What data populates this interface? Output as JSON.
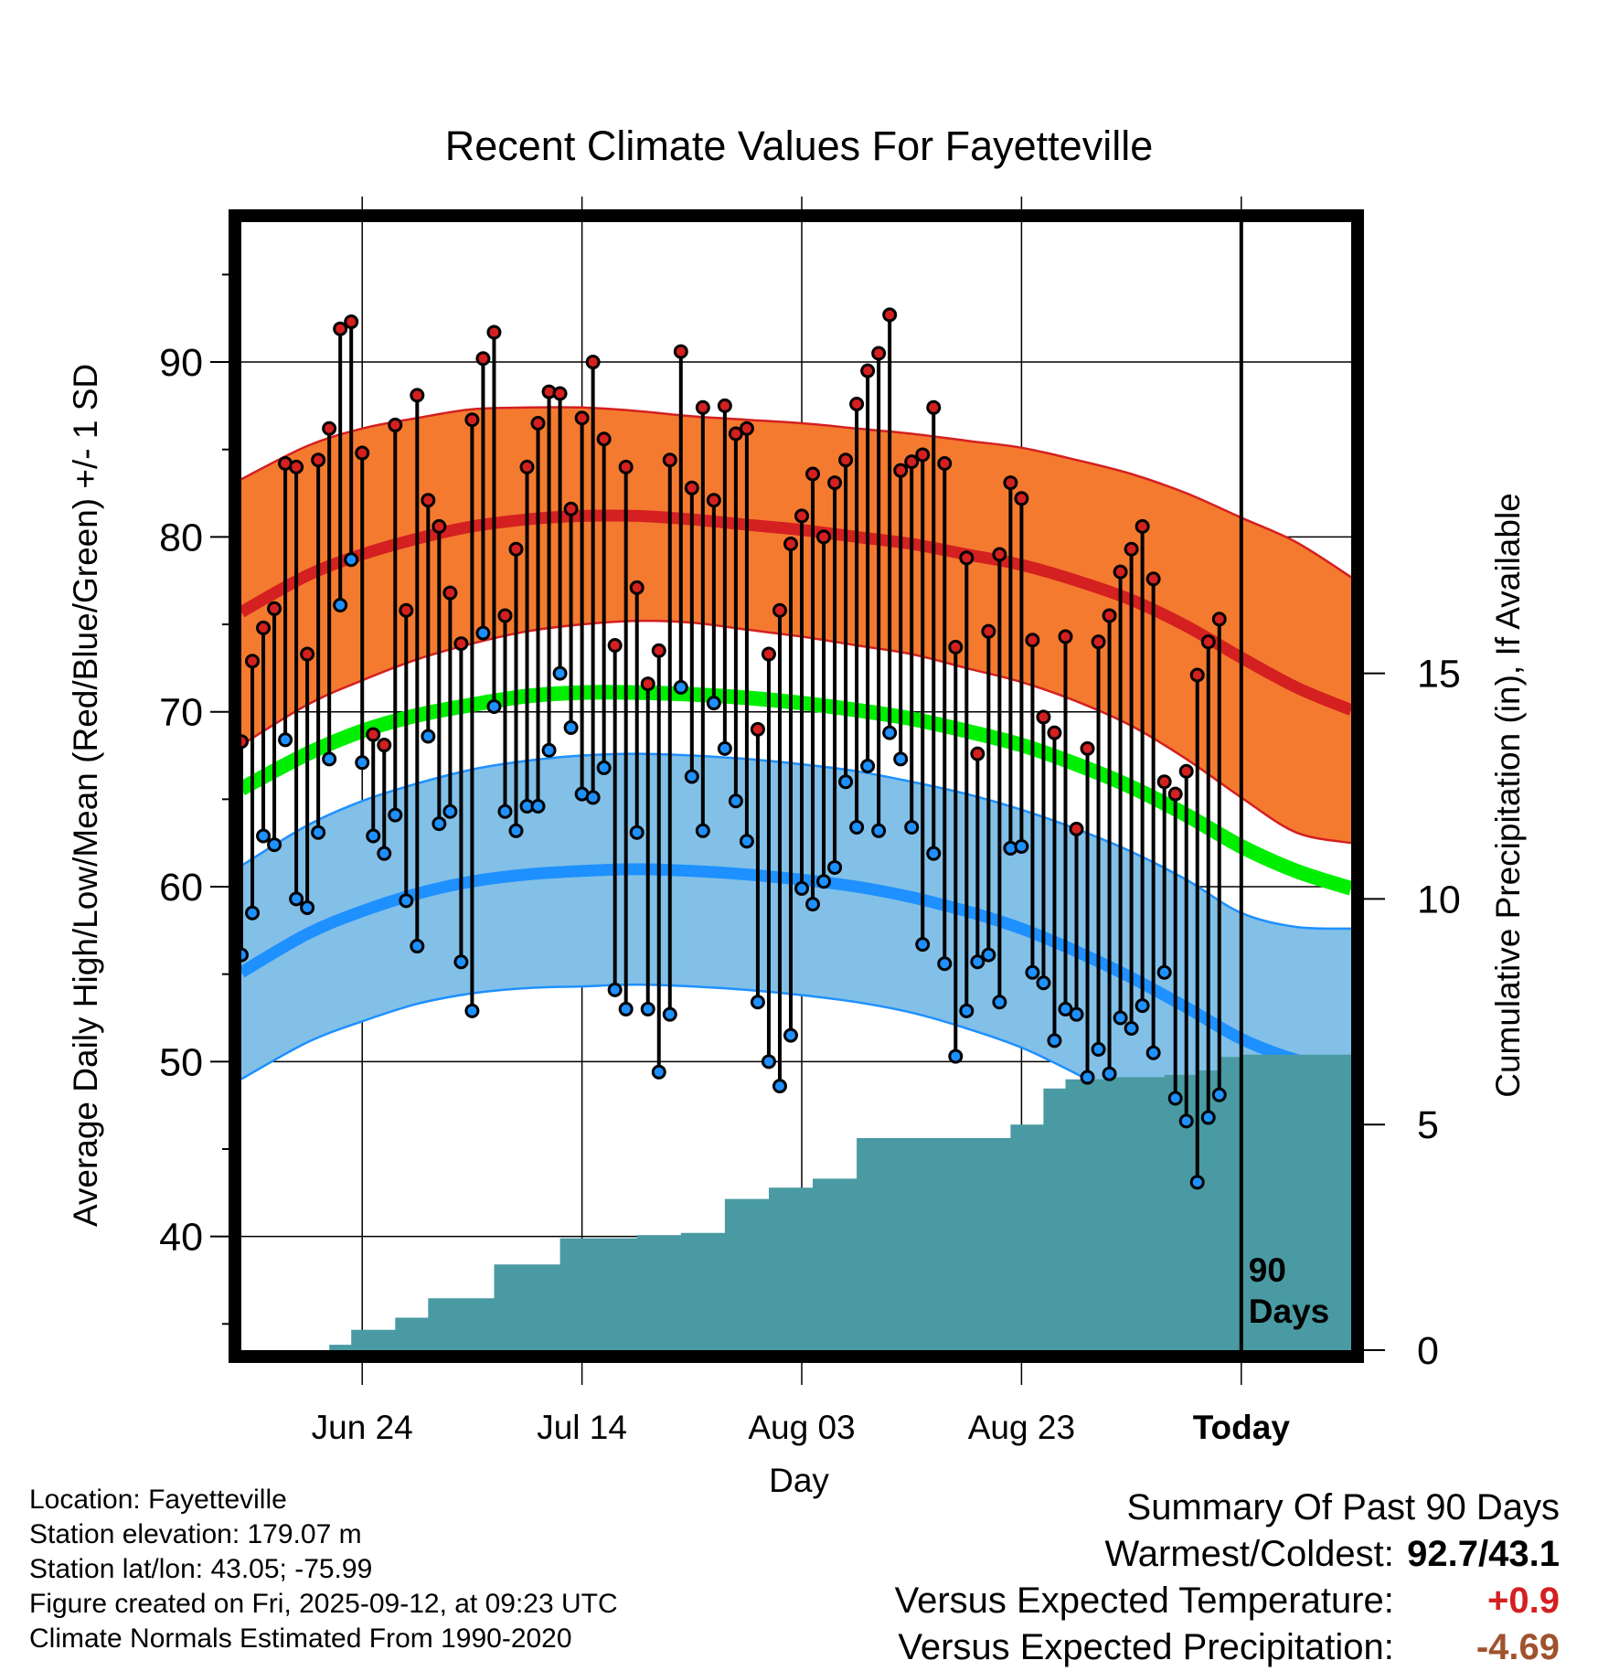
{
  "chart_data": {
    "type": "line",
    "title": "Recent Climate Values For Fayetteville",
    "xlabel": "Day",
    "ylabel": "Average Daily High/Low/Mean (Red/Blue/Green) +/- 1 SD",
    "y2label": "Cumulative Precipitation (in), If Available",
    "ylim": [
      33.5,
      98
    ],
    "y2lim": [
      0,
      25
    ],
    "xlim": [
      -11,
      90
    ],
    "x_tick_labels": [
      "Jun 24",
      "Jul 14",
      "Aug 03",
      "Aug 23",
      "Today"
    ],
    "x_tick_days": [
      0,
      20,
      40,
      60,
      80
    ],
    "y_ticks": [
      40,
      50,
      60,
      70,
      80,
      90
    ],
    "y2_ticks": [
      0,
      5,
      10,
      15
    ],
    "today_day": 80,
    "days_label": "90 Days",
    "grid": true,
    "normals": {
      "day": [
        -11,
        -5,
        0,
        5,
        10,
        15,
        20,
        25,
        30,
        35,
        40,
        45,
        50,
        55,
        60,
        65,
        70,
        75,
        80,
        85,
        90
      ],
      "high_mean": [
        75.7,
        77.8,
        79.0,
        79.9,
        80.6,
        81.0,
        81.2,
        81.2,
        81.0,
        80.7,
        80.4,
        80.0,
        79.6,
        79.0,
        78.4,
        77.5,
        76.4,
        74.9,
        73.1,
        71.4,
        70.1
      ],
      "high_sd": [
        7.6,
        7.4,
        7.2,
        6.9,
        6.7,
        6.4,
        6.2,
        6.0,
        5.9,
        6.0,
        6.1,
        6.2,
        6.3,
        6.5,
        6.7,
        6.9,
        7.2,
        7.6,
        8.0,
        8.3,
        7.6
      ],
      "low_mean": [
        55.1,
        57.3,
        58.6,
        59.6,
        60.3,
        60.7,
        60.9,
        61.0,
        60.9,
        60.7,
        60.4,
        60.0,
        59.4,
        58.6,
        57.6,
        56.3,
        54.8,
        53.1,
        51.3,
        50.1,
        49.4
      ],
      "low_sd": [
        6.1,
        6.2,
        6.3,
        6.3,
        6.4,
        6.5,
        6.6,
        6.6,
        6.6,
        6.6,
        6.6,
        6.6,
        6.6,
        6.7,
        6.8,
        7.0,
        7.2,
        7.3,
        7.2,
        7.6,
        8.2
      ],
      "avg_mean": [
        65.6,
        67.6,
        68.9,
        69.8,
        70.4,
        70.9,
        71.1,
        71.1,
        71.0,
        70.8,
        70.5,
        70.1,
        69.6,
        68.9,
        68.1,
        67.0,
        65.7,
        64.1,
        62.3,
        60.9,
        59.9
      ]
    },
    "series": [
      {
        "name": "Daily High",
        "start_day": -11,
        "values": [
          68.3,
          72.9,
          74.8,
          75.9,
          84.2,
          84.0,
          73.3,
          84.4,
          86.2,
          91.9,
          92.3,
          84.8,
          68.7,
          68.1,
          86.4,
          75.8,
          88.1,
          82.1,
          80.6,
          76.8,
          73.9,
          86.7,
          90.2,
          91.7,
          75.5,
          79.3,
          84.0,
          86.5,
          88.3,
          88.2,
          81.6,
          86.8,
          90.0,
          85.6,
          73.8,
          84.0,
          77.1,
          71.6,
          73.5,
          84.4,
          90.6,
          82.8,
          87.4,
          82.1,
          87.5,
          85.9,
          86.2,
          69.0,
          73.3,
          75.8,
          79.6,
          81.2,
          83.6,
          80.0,
          83.1,
          84.4,
          87.6,
          89.5,
          90.5,
          92.7,
          83.8,
          84.3,
          84.7,
          87.4,
          84.2,
          73.7,
          78.8,
          67.6,
          74.6,
          79.0,
          83.1,
          82.2,
          74.1,
          69.7,
          68.8,
          74.3,
          63.3,
          67.9,
          74.0,
          75.5,
          78.0,
          79.3,
          80.6,
          77.6,
          66.0,
          65.3,
          66.6,
          72.1,
          74.0,
          75.3
        ]
      },
      {
        "name": "Daily Low",
        "start_day": -11,
        "values": [
          56.1,
          58.5,
          62.9,
          62.4,
          68.4,
          59.3,
          58.8,
          63.1,
          67.3,
          76.1,
          78.7,
          67.1,
          62.9,
          61.9,
          64.1,
          59.2,
          56.6,
          68.6,
          63.6,
          64.3,
          55.7,
          52.9,
          74.5,
          70.3,
          64.3,
          63.2,
          64.6,
          64.6,
          67.8,
          72.2,
          69.1,
          65.3,
          65.1,
          66.8,
          54.1,
          53.0,
          63.1,
          53.0,
          49.4,
          52.7,
          71.4,
          66.3,
          63.2,
          70.5,
          67.9,
          64.9,
          62.6,
          53.4,
          50.0,
          48.6,
          51.5,
          59.9,
          59.0,
          60.3,
          61.1,
          66.0,
          63.4,
          66.9,
          63.2,
          68.8,
          67.3,
          63.4,
          56.7,
          61.9,
          55.6,
          50.3,
          52.9,
          55.7,
          56.1,
          53.4,
          62.2,
          62.3,
          55.1,
          54.5,
          51.2,
          53.0,
          52.7,
          49.1,
          50.7,
          49.3,
          52.5,
          51.9,
          53.2,
          50.5,
          55.1,
          47.9,
          46.6,
          43.1,
          46.8,
          48.1
        ]
      },
      {
        "name": "Cumulative Precipitation",
        "steps": [
          [
            -11,
            0.0
          ],
          [
            -3,
            0.12
          ],
          [
            -1,
            0.45
          ],
          [
            3,
            0.72
          ],
          [
            6,
            1.15
          ],
          [
            12,
            1.9
          ],
          [
            18,
            2.48
          ],
          [
            25,
            2.55
          ],
          [
            29,
            2.6
          ],
          [
            33,
            3.35
          ],
          [
            37,
            3.6
          ],
          [
            41,
            3.8
          ],
          [
            45,
            4.7
          ],
          [
            50,
            4.7
          ],
          [
            55,
            4.7
          ],
          [
            59,
            5.0
          ],
          [
            62,
            5.8
          ],
          [
            64,
            6.0
          ],
          [
            68,
            6.05
          ],
          [
            73,
            6.1
          ],
          [
            76,
            6.2
          ],
          [
            78,
            6.5
          ],
          [
            80,
            6.55
          ],
          [
            90,
            6.55
          ]
        ]
      }
    ]
  },
  "info": {
    "location": "Location: Fayetteville",
    "elevation": "Station elevation: 179.07 m",
    "latlon": "Station lat/lon: 43.05; -75.99",
    "created": "Figure created on Fri, 2025-09-12, at 09:23 UTC",
    "normals": "Climate Normals Estimated From 1990-2020"
  },
  "summary": {
    "title": "Summary Of Past 90 Days",
    "warm_cold_label": "Warmest/Coldest:",
    "warm_cold_value": "92.7/43.1",
    "temp_label": "Versus Expected Temperature:",
    "temp_value": "+0.9",
    "precip_label": "Versus Expected Precipitation:",
    "precip_value": "-4.69"
  },
  "colors": {
    "high_band": "#f47a30",
    "high_line": "#d42020",
    "low_band": "#82c0e8",
    "low_line": "#1e90ff",
    "mean_line": "#00ee00",
    "precip_fill": "#4a9aa3",
    "temp_value": "#d42020",
    "precip_value": "#a0522d"
  }
}
